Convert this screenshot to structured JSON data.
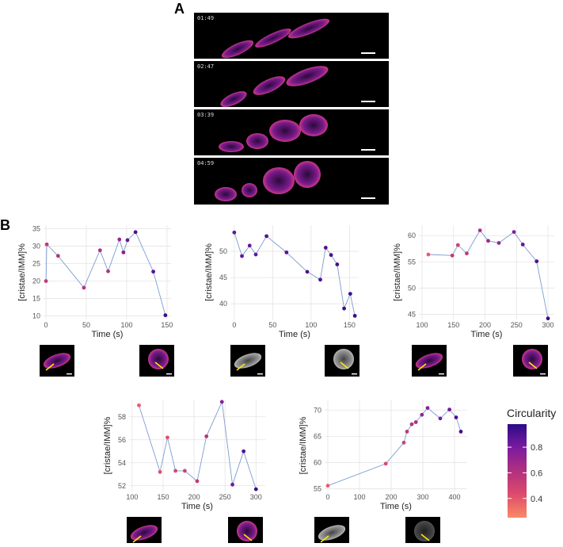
{
  "panel_a": {
    "letter": "A",
    "timestamps": [
      "01:49",
      "02:47",
      "03:39",
      "04:59"
    ]
  },
  "panel_b": {
    "letter": "B"
  },
  "legend": {
    "title": "Circularity",
    "ticks": [
      0.4,
      0.6,
      0.8
    ],
    "range": [
      0.25,
      0.98
    ],
    "colors": [
      "#fb8a64",
      "#dd4b6c",
      "#b1307f",
      "#7a1ba0",
      "#2d0a86"
    ]
  },
  "chart_data": [
    {
      "type": "scatter",
      "xlabel": "Time (s)",
      "ylabel": "[cristae/IMM]%",
      "xlim": [
        -3,
        155
      ],
      "ylim": [
        9,
        36
      ],
      "xticks": [
        0,
        50,
        100,
        150
      ],
      "yticks": [
        10,
        15,
        20,
        25,
        30,
        35
      ],
      "grid": true,
      "points": [
        {
          "x": 0,
          "y": 20,
          "c": 0.55
        },
        {
          "x": 1,
          "y": 30.5,
          "c": 0.55
        },
        {
          "x": 15,
          "y": 27.2,
          "c": 0.6
        },
        {
          "x": 47,
          "y": 18.1,
          "c": 0.6
        },
        {
          "x": 67,
          "y": 28.8,
          "c": 0.62
        },
        {
          "x": 77,
          "y": 22.8,
          "c": 0.6
        },
        {
          "x": 91,
          "y": 31.9,
          "c": 0.7
        },
        {
          "x": 96,
          "y": 28.2,
          "c": 0.75
        },
        {
          "x": 101,
          "y": 31.7,
          "c": 0.85
        },
        {
          "x": 111,
          "y": 34,
          "c": 0.9
        },
        {
          "x": 133,
          "y": 22.7,
          "c": 0.88
        },
        {
          "x": 148,
          "y": 10.2,
          "c": 0.95
        }
      ],
      "thumbnails": [
        "magenta",
        "magenta"
      ]
    },
    {
      "type": "scatter",
      "xlabel": "Time (s)",
      "ylabel": "[cristae/IMM]%",
      "xlim": [
        -5,
        162
      ],
      "ylim": [
        37,
        55
      ],
      "xticks": [
        0,
        50,
        100,
        150
      ],
      "yticks": [
        40,
        45,
        50
      ],
      "grid": true,
      "points": [
        {
          "x": 0,
          "y": 53.6,
          "c": 0.85
        },
        {
          "x": 10,
          "y": 49.1,
          "c": 0.85
        },
        {
          "x": 20,
          "y": 51.1,
          "c": 0.85
        },
        {
          "x": 28,
          "y": 49.4,
          "c": 0.85
        },
        {
          "x": 42,
          "y": 52.9,
          "c": 0.88
        },
        {
          "x": 68,
          "y": 49.8,
          "c": 0.88
        },
        {
          "x": 95,
          "y": 46.1,
          "c": 0.9
        },
        {
          "x": 112,
          "y": 44.6,
          "c": 0.9
        },
        {
          "x": 119,
          "y": 50.7,
          "c": 0.9
        },
        {
          "x": 126,
          "y": 49.3,
          "c": 0.92
        },
        {
          "x": 134,
          "y": 47.5,
          "c": 0.92
        },
        {
          "x": 143,
          "y": 39.1,
          "c": 0.95
        },
        {
          "x": 151,
          "y": 41.9,
          "c": 0.95
        },
        {
          "x": 157,
          "y": 37.7,
          "c": 0.95
        }
      ],
      "thumbnails": [
        "gray",
        "gray"
      ]
    },
    {
      "type": "scatter",
      "xlabel": "Time (s)",
      "ylabel": "[cristae/IMM]%",
      "xlim": [
        95,
        310
      ],
      "ylim": [
        44,
        62
      ],
      "xticks": [
        100,
        150,
        200,
        250,
        300
      ],
      "yticks": [
        45,
        50,
        55,
        60
      ],
      "grid": true,
      "points": [
        {
          "x": 110,
          "y": 56.4,
          "c": 0.38
        },
        {
          "x": 148,
          "y": 56.2,
          "c": 0.55
        },
        {
          "x": 157,
          "y": 58.2,
          "c": 0.5
        },
        {
          "x": 171,
          "y": 56.6,
          "c": 0.55
        },
        {
          "x": 192,
          "y": 61,
          "c": 0.62
        },
        {
          "x": 205,
          "y": 59,
          "c": 0.68
        },
        {
          "x": 222,
          "y": 58.6,
          "c": 0.7
        },
        {
          "x": 246,
          "y": 60.7,
          "c": 0.78
        },
        {
          "x": 260,
          "y": 58.3,
          "c": 0.85
        },
        {
          "x": 282,
          "y": 55.1,
          "c": 0.9
        },
        {
          "x": 300,
          "y": 44.2,
          "c": 0.95
        }
      ],
      "thumbnails": [
        "magenta",
        "magenta"
      ]
    },
    {
      "type": "scatter",
      "xlabel": "Time (s)",
      "ylabel": "[cristae/IMM]%",
      "xlim": [
        95,
        315
      ],
      "ylim": [
        51.5,
        59.5
      ],
      "xticks": [
        100,
        150,
        200,
        250,
        300
      ],
      "yticks": [
        52,
        54,
        56,
        58
      ],
      "grid": true,
      "points": [
        {
          "x": 111,
          "y": 59,
          "c": 0.38
        },
        {
          "x": 145,
          "y": 53.2,
          "c": 0.42
        },
        {
          "x": 157,
          "y": 56.2,
          "c": 0.42
        },
        {
          "x": 170,
          "y": 53.3,
          "c": 0.45
        },
        {
          "x": 185,
          "y": 53.3,
          "c": 0.5
        },
        {
          "x": 205,
          "y": 52.4,
          "c": 0.55
        },
        {
          "x": 220,
          "y": 56.3,
          "c": 0.6
        },
        {
          "x": 245,
          "y": 59.3,
          "c": 0.75
        },
        {
          "x": 262,
          "y": 52.1,
          "c": 0.82
        },
        {
          "x": 280,
          "y": 55,
          "c": 0.9
        },
        {
          "x": 300,
          "y": 51.7,
          "c": 0.95
        }
      ],
      "thumbnails": [
        "magenta",
        "magenta"
      ]
    },
    {
      "type": "scatter",
      "xlabel": "Time (s)",
      "ylabel": "[cristae/IMM]%",
      "xlim": [
        -10,
        440
      ],
      "ylim": [
        54.5,
        72
      ],
      "xticks": [
        0,
        100,
        200,
        300,
        400
      ],
      "yticks": [
        55,
        60,
        65,
        70
      ],
      "grid": true,
      "points": [
        {
          "x": 0,
          "y": 55.6,
          "c": 0.38
        },
        {
          "x": 183,
          "y": 59.8,
          "c": 0.45
        },
        {
          "x": 240,
          "y": 63.8,
          "c": 0.5
        },
        {
          "x": 250,
          "y": 65.9,
          "c": 0.55
        },
        {
          "x": 265,
          "y": 67.3,
          "c": 0.6
        },
        {
          "x": 278,
          "y": 67.7,
          "c": 0.62
        },
        {
          "x": 297,
          "y": 69.1,
          "c": 0.72
        },
        {
          "x": 315,
          "y": 70.4,
          "c": 0.75
        },
        {
          "x": 355,
          "y": 68.4,
          "c": 0.8
        },
        {
          "x": 384,
          "y": 70.1,
          "c": 0.82
        },
        {
          "x": 405,
          "y": 68.6,
          "c": 0.9
        },
        {
          "x": 420,
          "y": 65.9,
          "c": 0.92
        }
      ],
      "thumbnails": [
        "gray",
        "gray-dark"
      ]
    }
  ]
}
